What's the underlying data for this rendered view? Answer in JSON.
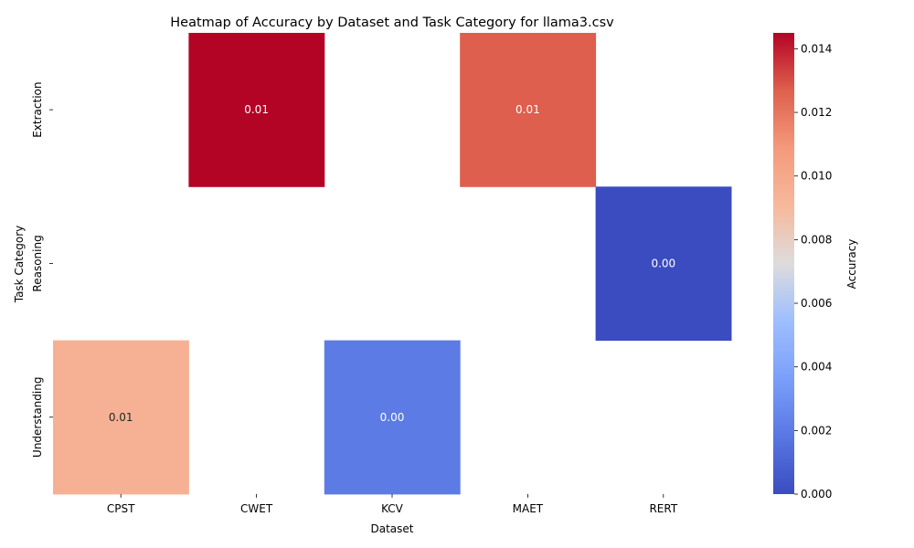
{
  "chart_data": {
    "type": "heatmap",
    "title": "Heatmap of Accuracy by Dataset and Task Category for llama3.csv",
    "xlabel": "Dataset",
    "ylabel": "Task Category",
    "x_categories": [
      "CPST",
      "CWET",
      "KCV",
      "MAET",
      "RERT"
    ],
    "y_categories": [
      "Extraction",
      "Reasoning",
      "Understanding"
    ],
    "cells": [
      {
        "x": "CWET",
        "y": "Extraction",
        "value": 0.0145,
        "label": "0.01"
      },
      {
        "x": "MAET",
        "y": "Extraction",
        "value": 0.0127,
        "label": "0.01"
      },
      {
        "x": "RERT",
        "y": "Reasoning",
        "value": 0.0,
        "label": "0.00"
      },
      {
        "x": "CPST",
        "y": "Understanding",
        "value": 0.0095,
        "label": "0.01"
      },
      {
        "x": "KCV",
        "y": "Understanding",
        "value": 0.002,
        "label": "0.00"
      }
    ],
    "colorbar": {
      "label": "Accuracy",
      "colormap": "coolwarm",
      "range": [
        0.0,
        0.0145
      ],
      "ticks": [
        "0.000",
        "0.002",
        "0.004",
        "0.006",
        "0.008",
        "0.010",
        "0.012",
        "0.014"
      ]
    }
  }
}
